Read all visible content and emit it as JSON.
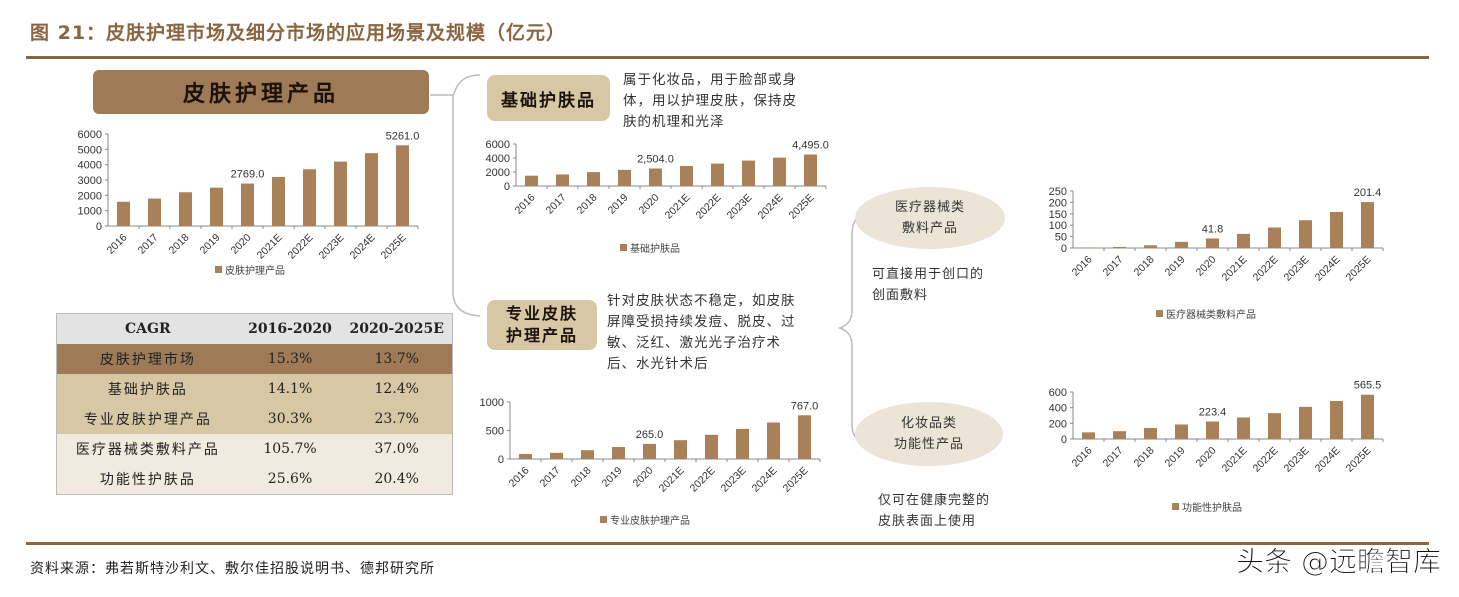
{
  "figure": {
    "title": "图 21：皮肤护理市场及细分市场的应用场景及规模（亿元）",
    "source": "资料来源：弗若斯特沙利文、敷尔佳招股说明书、德邦研究所",
    "watermark": "头条 @远瞻智库"
  },
  "colors": {
    "bar": "#a98158",
    "accent": "#8b6440",
    "header_main": "#9e7a56",
    "header_sub": "#d8c7a4",
    "ellipse": "#ece4d6"
  },
  "headers": {
    "main": "皮肤护理产品",
    "basic": "基础护肤品",
    "professional_line1": "专业皮肤",
    "professional_line2": "护理产品"
  },
  "descriptions": {
    "basic": [
      "属于化妆品，用于脸部或身",
      "体，用以护理皮肤，保持皮",
      "肤的机理和光泽"
    ],
    "professional": [
      "针对皮肤状态不稳定，如皮肤",
      "屏障受损持续发痘、脱皮、过",
      "敏、泛红、激光光子治疗术",
      "后、水光针术后"
    ],
    "medical": [
      "可直接用于创口的",
      "创面敷料"
    ],
    "cosmetic": [
      "仅可在健康完整的",
      "皮肤表面上使用"
    ]
  },
  "ellipses": {
    "medical": [
      "医疗器械类",
      "敷料产品"
    ],
    "cosmetic": [
      "化妆品类",
      "功能性产品"
    ]
  },
  "cagr_table": {
    "headers": [
      "CAGR",
      "2016-2020",
      "2020-2025E"
    ],
    "rows": [
      {
        "name": "皮肤护理市场",
        "c1": "15.3%",
        "c2": "13.7%",
        "bg": "#9e7a56"
      },
      {
        "name": "基础护肤品",
        "c1": "14.1%",
        "c2": "12.4%",
        "bg": "#d8c7a4"
      },
      {
        "name": "专业皮肤护理产品",
        "c1": "30.3%",
        "c2": "23.7%",
        "bg": "#d8c7a4"
      },
      {
        "name": "医疗器械类敷料产品",
        "c1": "105.7%",
        "c2": "37.0%",
        "bg": "#f1ebdf"
      },
      {
        "name": "功能性护肤品",
        "c1": "25.6%",
        "c2": "20.4%",
        "bg": "#f1ebdf"
      }
    ]
  },
  "chart_data": [
    {
      "id": "skincare",
      "type": "bar",
      "title": "皮肤护理产品",
      "categories": [
        "2016",
        "2017",
        "2018",
        "2019",
        "2020",
        "2021E",
        "2022E",
        "2023E",
        "2024E",
        "2025E"
      ],
      "series": [
        {
          "name": "皮肤护理产品",
          "values": [
            1580,
            1790,
            2200,
            2500,
            2769.0,
            3200,
            3700,
            4200,
            4750,
            5261.0
          ]
        }
      ],
      "labels": {
        "4": "2769.0",
        "9": "5261.0"
      },
      "yticks": [
        0,
        1000,
        2000,
        3000,
        4000,
        5000,
        6000
      ],
      "ylim": [
        0,
        6000
      ]
    },
    {
      "id": "basic",
      "type": "bar",
      "title": "基础护肤品",
      "categories": [
        "2016",
        "2017",
        "2018",
        "2019",
        "2020",
        "2021E",
        "2022E",
        "2023E",
        "2024E",
        "2025E"
      ],
      "series": [
        {
          "name": "基础护肤品",
          "values": [
            1470,
            1650,
            1990,
            2300,
            2504.0,
            2850,
            3200,
            3630,
            4050,
            4495.0
          ]
        }
      ],
      "labels": {
        "4": "2,504.0",
        "9": "4,495.0"
      },
      "yticks": [
        0,
        2000,
        4000,
        6000
      ],
      "ylim": [
        0,
        6000
      ]
    },
    {
      "id": "professional",
      "type": "bar",
      "title": "专业皮肤护理产品",
      "categories": [
        "2016",
        "2017",
        "2018",
        "2019",
        "2020",
        "2021E",
        "2022E",
        "2023E",
        "2024E",
        "2025E"
      ],
      "series": [
        {
          "name": "专业皮肤护理产品",
          "values": [
            88,
            108,
            155,
            210,
            265.0,
            330,
            425,
            528,
            640,
            767.0
          ]
        }
      ],
      "labels": {
        "4": "265.0",
        "9": "767.0"
      },
      "yticks": [
        0,
        500,
        1000
      ],
      "ylim": [
        0,
        1000
      ]
    },
    {
      "id": "medical",
      "type": "bar",
      "title": "医疗器械类敷料产品",
      "categories": [
        "2016",
        "2017",
        "2018",
        "2019",
        "2020",
        "2021E",
        "2022E",
        "2023E",
        "2024E",
        "2025E"
      ],
      "series": [
        {
          "name": "医疗器械类敷料产品",
          "values": [
            2.3,
            4.5,
            12,
            27,
            41.8,
            62,
            90,
            122,
            158,
            201.4
          ]
        }
      ],
      "labels": {
        "4": "41.8",
        "9": "201.4"
      },
      "yticks": [
        0,
        50,
        100,
        150,
        200,
        250
      ],
      "ylim": [
        0,
        250
      ]
    },
    {
      "id": "cosmetic",
      "type": "bar",
      "title": "功能性护肤品",
      "categories": [
        "2016",
        "2017",
        "2018",
        "2019",
        "2020",
        "2021E",
        "2022E",
        "2023E",
        "2024E",
        "2025E"
      ],
      "series": [
        {
          "name": "功能性护肤品",
          "values": [
            85,
            100,
            140,
            185,
            223.4,
            275,
            330,
            410,
            485,
            565.5
          ]
        }
      ],
      "labels": {
        "4": "223.4",
        "9": "565.5"
      },
      "yticks": [
        0,
        200,
        400,
        600
      ],
      "ylim": [
        0,
        600
      ]
    }
  ]
}
